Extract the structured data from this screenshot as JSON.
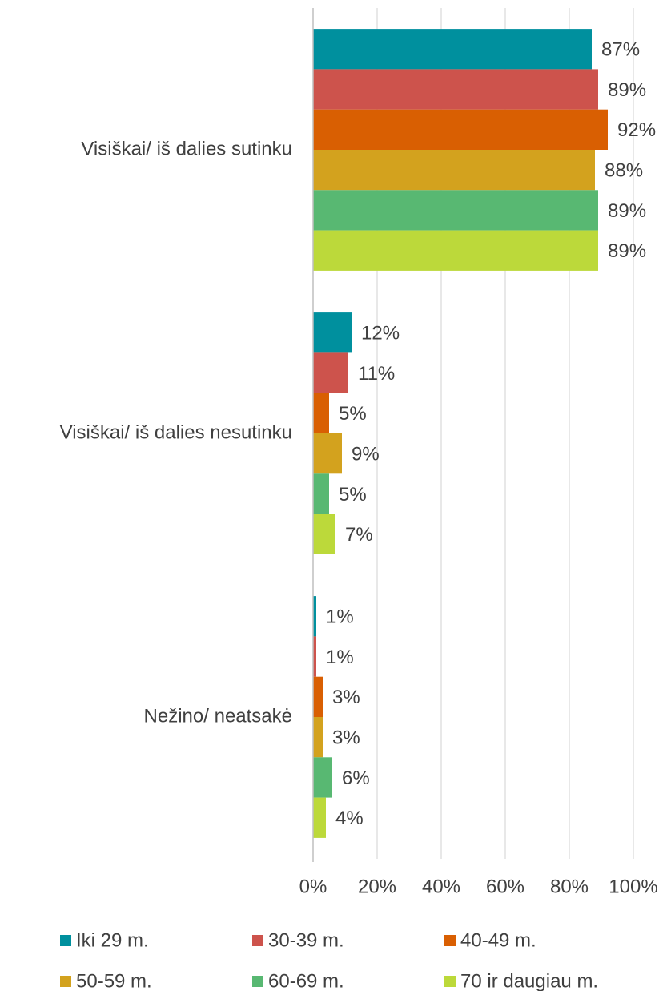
{
  "chart_data": {
    "type": "barh",
    "categories": [
      "Visiškai/ iš dalies sutinku",
      "Visiškai/ iš dalies nesutinku",
      "Nežino/ neatsakė"
    ],
    "series": [
      {
        "name": "Iki 29 m.",
        "color": "#00909e",
        "values": [
          87,
          12,
          1
        ],
        "value_labels": [
          "87%",
          "12%",
          "1%"
        ]
      },
      {
        "name": "30-39 m.",
        "color": "#cd534c",
        "values": [
          89,
          11,
          1
        ],
        "value_labels": [
          "89%",
          "11%",
          "1%"
        ]
      },
      {
        "name": "40-49 m.",
        "color": "#d95f02",
        "values": [
          92,
          5,
          3
        ],
        "value_labels": [
          "92%",
          "5%",
          "3%"
        ]
      },
      {
        "name": "50-59 m.",
        "color": "#d3a21e",
        "values": [
          88,
          9,
          3
        ],
        "value_labels": [
          "88%",
          "9%",
          "3%"
        ]
      },
      {
        "name": "60-69 m.",
        "color": "#58b872",
        "values": [
          89,
          5,
          6
        ],
        "value_labels": [
          "89%",
          "5%",
          "6%"
        ]
      },
      {
        "name": "70 ir daugiau m.",
        "color": "#bcd93a",
        "values": [
          89,
          7,
          4
        ],
        "value_labels": [
          "89%",
          "7%",
          "4%"
        ]
      }
    ],
    "xlim": [
      0,
      100
    ],
    "xticks": [
      {
        "value": 0,
        "label": "0%"
      },
      {
        "value": 20,
        "label": "20%"
      },
      {
        "value": 40,
        "label": "40%"
      },
      {
        "value": 60,
        "label": "60%"
      },
      {
        "value": 80,
        "label": "80%"
      },
      {
        "value": 100,
        "label": "100%"
      }
    ],
    "grid": true,
    "legend": "bottom"
  }
}
